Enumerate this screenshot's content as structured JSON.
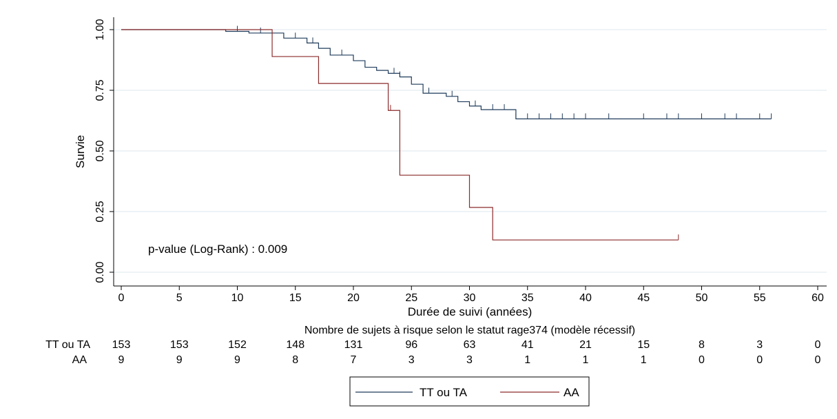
{
  "chart_data": {
    "type": "line",
    "xlabel": "Durée de suivi (années)",
    "ylabel": "Survie",
    "xlim": [
      0,
      60
    ],
    "ylim": [
      0,
      1
    ],
    "x_ticks": [
      "0",
      "5",
      "10",
      "15",
      "20",
      "25",
      "30",
      "35",
      "40",
      "45",
      "50",
      "55",
      "60"
    ],
    "y_ticks": [
      "0.00",
      "0.25",
      "0.50",
      "0.75",
      "1.00"
    ],
    "grid": "horizontal",
    "annotation": "p-value (Log-Rank) : 0.009",
    "series": [
      {
        "name": "TT ou TA",
        "color": "#1f3b5a",
        "steps": [
          [
            0,
            1.0
          ],
          [
            9,
            0.993
          ],
          [
            11,
            0.986
          ],
          [
            14,
            0.965
          ],
          [
            16,
            0.945
          ],
          [
            17,
            0.923
          ],
          [
            18,
            0.895
          ],
          [
            20,
            0.872
          ],
          [
            21,
            0.845
          ],
          [
            22,
            0.832
          ],
          [
            23,
            0.82
          ],
          [
            24,
            0.805
          ],
          [
            25,
            0.775
          ],
          [
            26,
            0.738
          ],
          [
            28,
            0.725
          ],
          [
            29,
            0.703
          ],
          [
            30,
            0.685
          ],
          [
            31,
            0.67
          ],
          [
            34,
            0.632
          ]
        ],
        "end": 56,
        "censor": [
          10,
          12,
          15,
          16.5,
          19,
          20,
          23.5,
          24,
          26.5,
          28.5,
          30.5,
          32,
          33,
          34,
          35,
          36,
          37,
          38,
          39,
          40,
          42,
          45,
          47,
          48,
          50,
          52,
          53,
          55,
          56
        ]
      },
      {
        "name": "AA",
        "color": "#8b2a2a",
        "steps": [
          [
            0,
            1.0
          ],
          [
            13,
            0.889
          ],
          [
            17,
            0.778
          ],
          [
            23,
            0.667
          ],
          [
            24,
            0.4
          ],
          [
            30,
            0.267
          ],
          [
            32,
            0.133
          ]
        ],
        "end": 48,
        "censor": [
          23.2,
          48
        ]
      }
    ]
  },
  "risk_table": {
    "title": "Nombre de sujets à risque selon le statut rage374 (modèle récessif)",
    "rows": [
      {
        "label": "TT ou TA",
        "values": [
          "153",
          "153",
          "152",
          "148",
          "131",
          "96",
          "63",
          "41",
          "21",
          "15",
          "8",
          "3",
          "0"
        ]
      },
      {
        "label": "AA",
        "values": [
          "9",
          "9",
          "9",
          "8",
          "7",
          "3",
          "3",
          "1",
          "1",
          "1",
          "0",
          "0",
          "0"
        ]
      }
    ]
  },
  "legend": {
    "items": [
      "TT ou TA",
      "AA"
    ]
  }
}
